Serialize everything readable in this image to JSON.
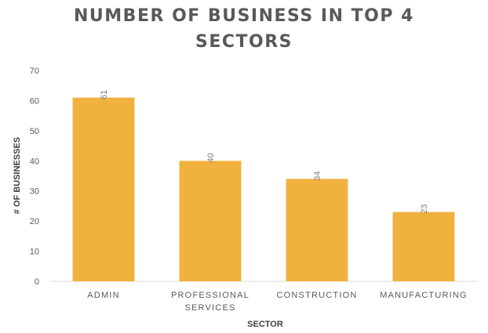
{
  "chart_data": {
    "type": "bar",
    "title_lines": [
      "NUMBER OF BUSINESS IN TOP 4",
      "SECTORS"
    ],
    "categories": [
      [
        "ADMIN"
      ],
      [
        "PROFESSIONAL",
        "SERVICES"
      ],
      [
        "CONSTRUCTION"
      ],
      [
        "MANUFACTURING"
      ]
    ],
    "values": [
      61,
      40,
      34,
      23
    ],
    "data_labels": [
      "61",
      "40",
      "34",
      "23"
    ],
    "xlabel": "SECTOR",
    "ylabel": "# OF BUSINESSES",
    "ylim": [
      0,
      70
    ],
    "yticks": [
      0,
      10,
      20,
      30,
      40,
      50,
      60,
      70
    ],
    "bar_color": "#F0B13E",
    "grid": false,
    "legend": false
  }
}
